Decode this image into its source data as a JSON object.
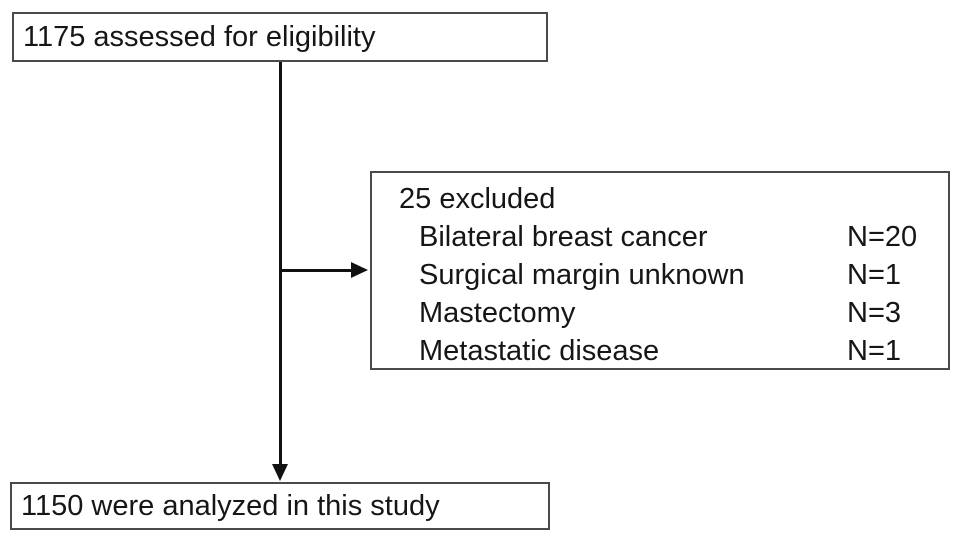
{
  "flowchart": {
    "assessed_box": {
      "label": "1175 assessed for eligibility"
    },
    "excluded_box": {
      "title": "25 excluded",
      "items": [
        {
          "label": "Bilateral breast cancer",
          "count": "N=20"
        },
        {
          "label": "Surgical margin unknown",
          "count": "N=1"
        },
        {
          "label": "Mastectomy",
          "count": "N=3"
        },
        {
          "label": "Metastatic disease",
          "count": "N=1"
        }
      ]
    },
    "analyzed_box": {
      "label": "1150 were analyzed in this study"
    }
  },
  "colors": {
    "background": "#ffffff",
    "border": "#4a4a4a",
    "text": "#161616",
    "arrow": "#111111"
  }
}
